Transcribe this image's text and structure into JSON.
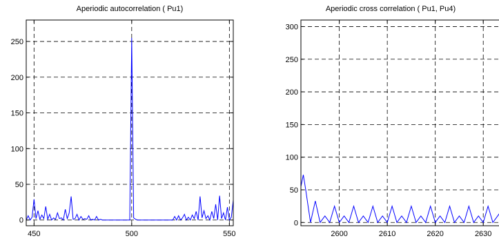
{
  "chart_data": [
    {
      "type": "line",
      "title": "Aperiodic autocorrelation ( Pu1)",
      "xlabel": "",
      "ylabel": "",
      "xlim": [
        446,
        552
      ],
      "ylim": [
        -8,
        280
      ],
      "xticks": [
        450,
        500,
        550
      ],
      "yticks": [
        0,
        50,
        100,
        150,
        200,
        250
      ],
      "grid": true,
      "line_color": "#0000ff",
      "series": [
        {
          "x": [
            446,
            447,
            448,
            449,
            450,
            451,
            452,
            453,
            454,
            455,
            456,
            457,
            458,
            459,
            460,
            461,
            462,
            463,
            464,
            465,
            466,
            467,
            468,
            469,
            470,
            471,
            472,
            473,
            474,
            475,
            476,
            477,
            478,
            479,
            480,
            481,
            482,
            483,
            484,
            485,
            486,
            487,
            488,
            489,
            490,
            491,
            492,
            493,
            494,
            495,
            496,
            497,
            498,
            499,
            500,
            501,
            502,
            503,
            504,
            505,
            506,
            507,
            508,
            509,
            510,
            511,
            512,
            513,
            514,
            515,
            516,
            517,
            518,
            519,
            520,
            521,
            522,
            523,
            524,
            525,
            526,
            527,
            528,
            529,
            530,
            531,
            532,
            533,
            534,
            535,
            536,
            537,
            538,
            539,
            540,
            541,
            542,
            543,
            544,
            545,
            546,
            547,
            548,
            549,
            550,
            551,
            552
          ],
          "y": [
            0,
            6,
            0,
            4,
            29,
            2,
            13,
            1,
            7,
            2,
            19,
            1,
            8,
            0,
            3,
            1,
            10,
            2,
            3,
            0,
            15,
            2,
            10,
            33,
            1,
            2,
            8,
            0,
            5,
            1,
            2,
            1,
            6,
            0,
            1,
            0,
            5,
            0,
            1,
            0,
            0,
            0,
            0,
            0,
            0,
            0,
            0,
            0,
            0,
            0,
            0,
            0,
            0,
            0,
            255,
            3,
            1,
            0,
            0,
            0,
            0,
            0,
            0,
            0,
            0,
            0,
            0,
            0,
            0,
            0,
            0,
            0,
            0,
            0,
            0,
            0,
            5,
            0,
            6,
            0,
            3,
            8,
            0,
            4,
            0,
            7,
            2,
            12,
            0,
            33,
            3,
            13,
            2,
            6,
            0,
            12,
            2,
            22,
            0,
            34,
            2,
            10,
            0,
            18,
            0,
            4,
            28
          ]
        }
      ]
    },
    {
      "type": "line",
      "title": "Aperiodic cross correlation ( Pu1, Pu4)",
      "xlabel": "",
      "ylabel": "",
      "xlim": [
        2592,
        2634
      ],
      "ylim": [
        -5,
        310
      ],
      "xticks": [
        2600,
        2610,
        2620,
        2630
      ],
      "yticks": [
        0,
        50,
        100,
        150,
        200,
        250,
        300
      ],
      "grid": true,
      "line_color": "#0000ff",
      "series": [
        {
          "x": [
            2592,
            2592.5,
            2593,
            2594,
            2595,
            2596,
            2597,
            2598,
            2599,
            2600,
            2601,
            2602,
            2603,
            2604,
            2605,
            2606,
            2607,
            2608,
            2609,
            2610,
            2611,
            2612,
            2613,
            2614,
            2615,
            2616,
            2617,
            2618,
            2619,
            2620,
            2621,
            2622,
            2623,
            2624,
            2625,
            2626,
            2627,
            2628,
            2629,
            2630,
            2631,
            2632,
            2633,
            2634
          ],
          "y": [
            55,
            73,
            50,
            0,
            33,
            0,
            10,
            0,
            25,
            0,
            10,
            0,
            25,
            0,
            10,
            0,
            25,
            0,
            10,
            0,
            25,
            0,
            10,
            0,
            25,
            0,
            10,
            0,
            25,
            0,
            10,
            0,
            25,
            0,
            10,
            0,
            25,
            0,
            10,
            0,
            25,
            0,
            10,
            20
          ]
        }
      ]
    }
  ]
}
